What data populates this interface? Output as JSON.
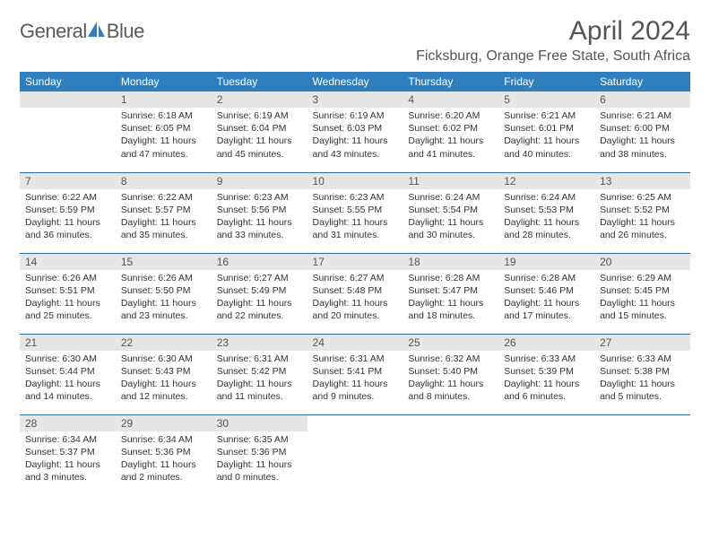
{
  "logo": {
    "text_left": "General",
    "text_right": "Blue"
  },
  "title": "April 2024",
  "location": "Ficksburg, Orange Free State, South Africa",
  "colors": {
    "header_bg": "#2f7fbf",
    "header_fg": "#ffffff",
    "daynum_bg": "#e6e6e6",
    "rule": "#2f6fa8",
    "logo_blue": "#2f7fbf",
    "text": "#333333"
  },
  "day_headers": [
    "Sunday",
    "Monday",
    "Tuesday",
    "Wednesday",
    "Thursday",
    "Friday",
    "Saturday"
  ],
  "weeks": [
    [
      null,
      {
        "n": "1",
        "sr": "Sunrise: 6:18 AM",
        "ss": "Sunset: 6:05 PM",
        "dl1": "Daylight: 11 hours",
        "dl2": "and 47 minutes."
      },
      {
        "n": "2",
        "sr": "Sunrise: 6:19 AM",
        "ss": "Sunset: 6:04 PM",
        "dl1": "Daylight: 11 hours",
        "dl2": "and 45 minutes."
      },
      {
        "n": "3",
        "sr": "Sunrise: 6:19 AM",
        "ss": "Sunset: 6:03 PM",
        "dl1": "Daylight: 11 hours",
        "dl2": "and 43 minutes."
      },
      {
        "n": "4",
        "sr": "Sunrise: 6:20 AM",
        "ss": "Sunset: 6:02 PM",
        "dl1": "Daylight: 11 hours",
        "dl2": "and 41 minutes."
      },
      {
        "n": "5",
        "sr": "Sunrise: 6:21 AM",
        "ss": "Sunset: 6:01 PM",
        "dl1": "Daylight: 11 hours",
        "dl2": "and 40 minutes."
      },
      {
        "n": "6",
        "sr": "Sunrise: 6:21 AM",
        "ss": "Sunset: 6:00 PM",
        "dl1": "Daylight: 11 hours",
        "dl2": "and 38 minutes."
      }
    ],
    [
      {
        "n": "7",
        "sr": "Sunrise: 6:22 AM",
        "ss": "Sunset: 5:59 PM",
        "dl1": "Daylight: 11 hours",
        "dl2": "and 36 minutes."
      },
      {
        "n": "8",
        "sr": "Sunrise: 6:22 AM",
        "ss": "Sunset: 5:57 PM",
        "dl1": "Daylight: 11 hours",
        "dl2": "and 35 minutes."
      },
      {
        "n": "9",
        "sr": "Sunrise: 6:23 AM",
        "ss": "Sunset: 5:56 PM",
        "dl1": "Daylight: 11 hours",
        "dl2": "and 33 minutes."
      },
      {
        "n": "10",
        "sr": "Sunrise: 6:23 AM",
        "ss": "Sunset: 5:55 PM",
        "dl1": "Daylight: 11 hours",
        "dl2": "and 31 minutes."
      },
      {
        "n": "11",
        "sr": "Sunrise: 6:24 AM",
        "ss": "Sunset: 5:54 PM",
        "dl1": "Daylight: 11 hours",
        "dl2": "and 30 minutes."
      },
      {
        "n": "12",
        "sr": "Sunrise: 6:24 AM",
        "ss": "Sunset: 5:53 PM",
        "dl1": "Daylight: 11 hours",
        "dl2": "and 28 minutes."
      },
      {
        "n": "13",
        "sr": "Sunrise: 6:25 AM",
        "ss": "Sunset: 5:52 PM",
        "dl1": "Daylight: 11 hours",
        "dl2": "and 26 minutes."
      }
    ],
    [
      {
        "n": "14",
        "sr": "Sunrise: 6:26 AM",
        "ss": "Sunset: 5:51 PM",
        "dl1": "Daylight: 11 hours",
        "dl2": "and 25 minutes."
      },
      {
        "n": "15",
        "sr": "Sunrise: 6:26 AM",
        "ss": "Sunset: 5:50 PM",
        "dl1": "Daylight: 11 hours",
        "dl2": "and 23 minutes."
      },
      {
        "n": "16",
        "sr": "Sunrise: 6:27 AM",
        "ss": "Sunset: 5:49 PM",
        "dl1": "Daylight: 11 hours",
        "dl2": "and 22 minutes."
      },
      {
        "n": "17",
        "sr": "Sunrise: 6:27 AM",
        "ss": "Sunset: 5:48 PM",
        "dl1": "Daylight: 11 hours",
        "dl2": "and 20 minutes."
      },
      {
        "n": "18",
        "sr": "Sunrise: 6:28 AM",
        "ss": "Sunset: 5:47 PM",
        "dl1": "Daylight: 11 hours",
        "dl2": "and 18 minutes."
      },
      {
        "n": "19",
        "sr": "Sunrise: 6:28 AM",
        "ss": "Sunset: 5:46 PM",
        "dl1": "Daylight: 11 hours",
        "dl2": "and 17 minutes."
      },
      {
        "n": "20",
        "sr": "Sunrise: 6:29 AM",
        "ss": "Sunset: 5:45 PM",
        "dl1": "Daylight: 11 hours",
        "dl2": "and 15 minutes."
      }
    ],
    [
      {
        "n": "21",
        "sr": "Sunrise: 6:30 AM",
        "ss": "Sunset: 5:44 PM",
        "dl1": "Daylight: 11 hours",
        "dl2": "and 14 minutes."
      },
      {
        "n": "22",
        "sr": "Sunrise: 6:30 AM",
        "ss": "Sunset: 5:43 PM",
        "dl1": "Daylight: 11 hours",
        "dl2": "and 12 minutes."
      },
      {
        "n": "23",
        "sr": "Sunrise: 6:31 AM",
        "ss": "Sunset: 5:42 PM",
        "dl1": "Daylight: 11 hours",
        "dl2": "and 11 minutes."
      },
      {
        "n": "24",
        "sr": "Sunrise: 6:31 AM",
        "ss": "Sunset: 5:41 PM",
        "dl1": "Daylight: 11 hours",
        "dl2": "and 9 minutes."
      },
      {
        "n": "25",
        "sr": "Sunrise: 6:32 AM",
        "ss": "Sunset: 5:40 PM",
        "dl1": "Daylight: 11 hours",
        "dl2": "and 8 minutes."
      },
      {
        "n": "26",
        "sr": "Sunrise: 6:33 AM",
        "ss": "Sunset: 5:39 PM",
        "dl1": "Daylight: 11 hours",
        "dl2": "and 6 minutes."
      },
      {
        "n": "27",
        "sr": "Sunrise: 6:33 AM",
        "ss": "Sunset: 5:38 PM",
        "dl1": "Daylight: 11 hours",
        "dl2": "and 5 minutes."
      }
    ],
    [
      {
        "n": "28",
        "sr": "Sunrise: 6:34 AM",
        "ss": "Sunset: 5:37 PM",
        "dl1": "Daylight: 11 hours",
        "dl2": "and 3 minutes."
      },
      {
        "n": "29",
        "sr": "Sunrise: 6:34 AM",
        "ss": "Sunset: 5:36 PM",
        "dl1": "Daylight: 11 hours",
        "dl2": "and 2 minutes."
      },
      {
        "n": "30",
        "sr": "Sunrise: 6:35 AM",
        "ss": "Sunset: 5:36 PM",
        "dl1": "Daylight: 11 hours",
        "dl2": "and 0 minutes."
      },
      null,
      null,
      null,
      null
    ]
  ]
}
